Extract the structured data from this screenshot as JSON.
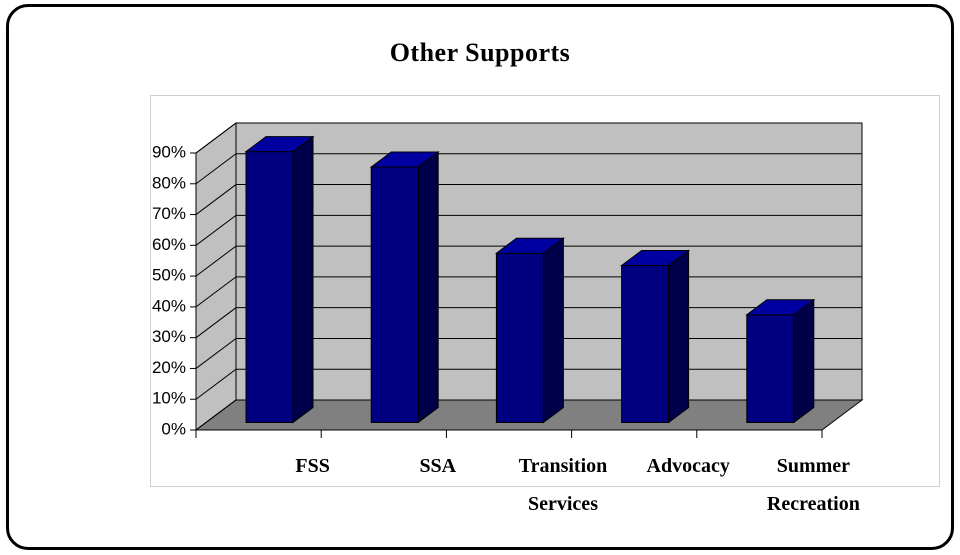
{
  "chart_data": {
    "type": "bar3d",
    "title": "Other Supports",
    "categories": [
      "FSS",
      "SSA",
      "Transition Services",
      "Advocacy",
      "Summer Recreation"
    ],
    "values": [
      88,
      83,
      55,
      51,
      35
    ],
    "color": "#000080",
    "ylim": [
      0,
      90
    ],
    "yticks": [
      {
        "value": 0,
        "label": "0%"
      },
      {
        "value": 10,
        "label": "10%"
      },
      {
        "value": 20,
        "label": "20%"
      },
      {
        "value": 30,
        "label": "30%"
      },
      {
        "value": 40,
        "label": "40%"
      },
      {
        "value": 50,
        "label": "50%"
      },
      {
        "value": 60,
        "label": "60%"
      },
      {
        "value": 70,
        "label": "70%"
      },
      {
        "value": 80,
        "label": "80%"
      },
      {
        "value": 90,
        "label": "90%"
      }
    ],
    "grid": true
  }
}
